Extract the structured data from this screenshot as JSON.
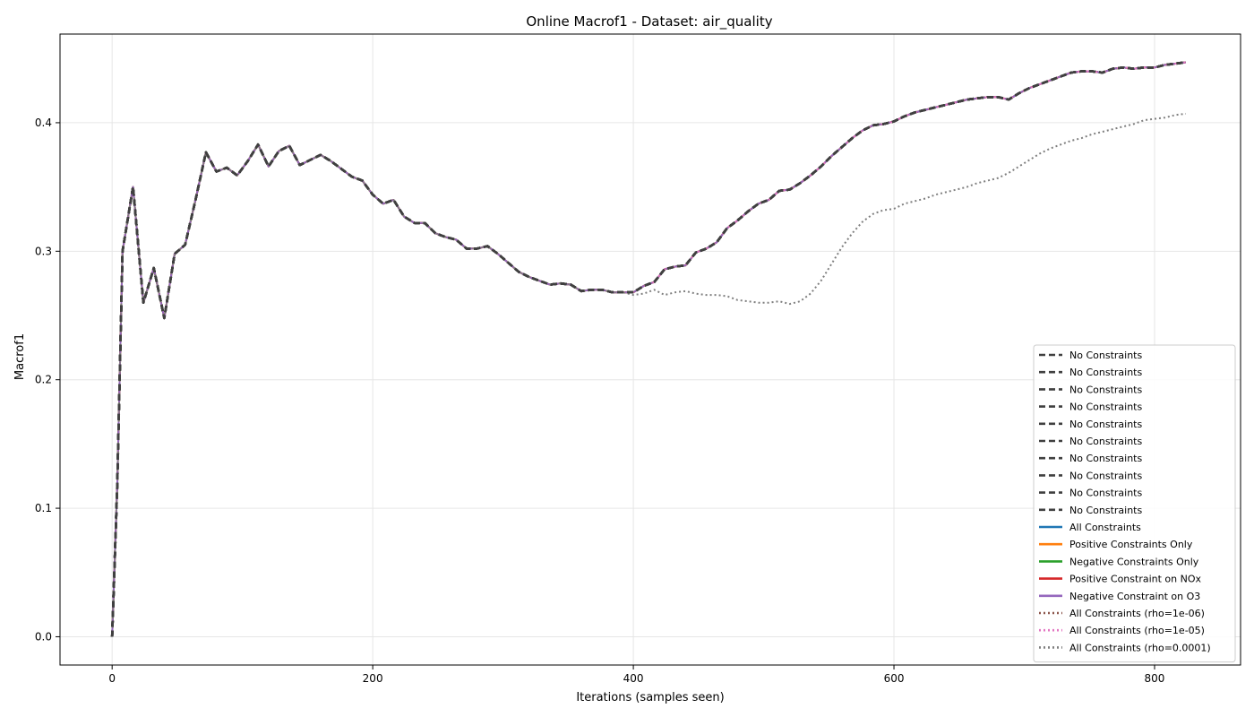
{
  "chart_data": {
    "type": "line",
    "title": "Online Macrof1 - Dataset: air_quality",
    "xlabel": "Iterations (samples seen)",
    "ylabel": "Macrof1",
    "xlim": [
      -40,
      866
    ],
    "ylim": [
      -0.022,
      0.469
    ],
    "xticks": [
      0,
      200,
      400,
      600,
      800
    ],
    "yticks": [
      0.0,
      0.1,
      0.2,
      0.3,
      0.4
    ],
    "grid": true,
    "legend_position": "lower-right",
    "main_curve": [
      [
        0,
        0.0
      ],
      [
        4,
        0.12
      ],
      [
        8,
        0.3
      ],
      [
        16,
        0.35
      ],
      [
        24,
        0.26
      ],
      [
        32,
        0.287
      ],
      [
        40,
        0.248
      ],
      [
        48,
        0.298
      ],
      [
        56,
        0.305
      ],
      [
        64,
        0.34
      ],
      [
        72,
        0.377
      ],
      [
        80,
        0.362
      ],
      [
        88,
        0.365
      ],
      [
        96,
        0.359
      ],
      [
        104,
        0.37
      ],
      [
        112,
        0.383
      ],
      [
        120,
        0.366
      ],
      [
        128,
        0.378
      ],
      [
        136,
        0.382
      ],
      [
        144,
        0.367
      ],
      [
        152,
        0.371
      ],
      [
        160,
        0.375
      ],
      [
        168,
        0.37
      ],
      [
        176,
        0.364
      ],
      [
        184,
        0.358
      ],
      [
        192,
        0.355
      ],
      [
        200,
        0.344
      ],
      [
        208,
        0.337
      ],
      [
        216,
        0.34
      ],
      [
        224,
        0.327
      ],
      [
        232,
        0.322
      ],
      [
        240,
        0.322
      ],
      [
        248,
        0.314
      ],
      [
        256,
        0.311
      ],
      [
        264,
        0.309
      ],
      [
        272,
        0.302
      ],
      [
        280,
        0.302
      ],
      [
        288,
        0.304
      ],
      [
        296,
        0.298
      ],
      [
        304,
        0.291
      ],
      [
        312,
        0.284
      ],
      [
        320,
        0.28
      ],
      [
        328,
        0.277
      ],
      [
        336,
        0.274
      ],
      [
        344,
        0.275
      ],
      [
        352,
        0.274
      ],
      [
        360,
        0.269
      ],
      [
        368,
        0.27
      ],
      [
        376,
        0.27
      ],
      [
        384,
        0.268
      ],
      [
        392,
        0.268
      ],
      [
        400,
        0.268
      ],
      [
        408,
        0.273
      ],
      [
        416,
        0.276
      ],
      [
        424,
        0.286
      ],
      [
        432,
        0.288
      ],
      [
        440,
        0.289
      ],
      [
        448,
        0.299
      ],
      [
        456,
        0.302
      ],
      [
        464,
        0.307
      ],
      [
        472,
        0.318
      ],
      [
        480,
        0.324
      ],
      [
        488,
        0.331
      ],
      [
        496,
        0.337
      ],
      [
        504,
        0.34
      ],
      [
        512,
        0.347
      ],
      [
        520,
        0.348
      ],
      [
        528,
        0.353
      ],
      [
        536,
        0.359
      ],
      [
        544,
        0.366
      ],
      [
        552,
        0.374
      ],
      [
        560,
        0.381
      ],
      [
        568,
        0.388
      ],
      [
        576,
        0.394
      ],
      [
        584,
        0.398
      ],
      [
        592,
        0.399
      ],
      [
        600,
        0.401
      ],
      [
        608,
        0.405
      ],
      [
        616,
        0.408
      ],
      [
        624,
        0.41
      ],
      [
        632,
        0.412
      ],
      [
        640,
        0.414
      ],
      [
        648,
        0.416
      ],
      [
        656,
        0.418
      ],
      [
        664,
        0.419
      ],
      [
        672,
        0.42
      ],
      [
        680,
        0.42
      ],
      [
        688,
        0.418
      ],
      [
        696,
        0.423
      ],
      [
        704,
        0.427
      ],
      [
        712,
        0.43
      ],
      [
        720,
        0.433
      ],
      [
        728,
        0.436
      ],
      [
        736,
        0.439
      ],
      [
        744,
        0.44
      ],
      [
        752,
        0.44
      ],
      [
        760,
        0.439
      ],
      [
        768,
        0.442
      ],
      [
        776,
        0.443
      ],
      [
        784,
        0.442
      ],
      [
        792,
        0.443
      ],
      [
        800,
        0.443
      ],
      [
        808,
        0.445
      ],
      [
        816,
        0.446
      ],
      [
        824,
        0.447
      ]
    ],
    "rho_1e_4_tail": [
      [
        400,
        0.266
      ],
      [
        408,
        0.267
      ],
      [
        416,
        0.27
      ],
      [
        424,
        0.266
      ],
      [
        432,
        0.268
      ],
      [
        440,
        0.269
      ],
      [
        448,
        0.267
      ],
      [
        456,
        0.266
      ],
      [
        464,
        0.266
      ],
      [
        472,
        0.265
      ],
      [
        480,
        0.262
      ],
      [
        488,
        0.261
      ],
      [
        496,
        0.26
      ],
      [
        504,
        0.26
      ],
      [
        512,
        0.261
      ],
      [
        520,
        0.259
      ],
      [
        528,
        0.261
      ],
      [
        536,
        0.267
      ],
      [
        544,
        0.277
      ],
      [
        552,
        0.29
      ],
      [
        560,
        0.303
      ],
      [
        568,
        0.314
      ],
      [
        576,
        0.323
      ],
      [
        584,
        0.329
      ],
      [
        592,
        0.332
      ],
      [
        600,
        0.333
      ],
      [
        608,
        0.337
      ],
      [
        616,
        0.339
      ],
      [
        624,
        0.341
      ],
      [
        632,
        0.344
      ],
      [
        640,
        0.346
      ],
      [
        648,
        0.348
      ],
      [
        656,
        0.35
      ],
      [
        664,
        0.353
      ],
      [
        672,
        0.355
      ],
      [
        680,
        0.357
      ],
      [
        688,
        0.361
      ],
      [
        696,
        0.366
      ],
      [
        704,
        0.371
      ],
      [
        712,
        0.376
      ],
      [
        720,
        0.38
      ],
      [
        728,
        0.383
      ],
      [
        736,
        0.386
      ],
      [
        744,
        0.388
      ],
      [
        752,
        0.391
      ],
      [
        760,
        0.393
      ],
      [
        768,
        0.395
      ],
      [
        776,
        0.397
      ],
      [
        784,
        0.399
      ],
      [
        792,
        0.402
      ],
      [
        800,
        0.403
      ],
      [
        808,
        0.404
      ],
      [
        816,
        0.406
      ],
      [
        824,
        0.407
      ]
    ],
    "series": [
      {
        "name": "No Constraints",
        "color": "#404040",
        "dash": "dashed",
        "data": "main"
      },
      {
        "name": "No Constraints",
        "color": "#404040",
        "dash": "dashed",
        "data": "main"
      },
      {
        "name": "No Constraints",
        "color": "#404040",
        "dash": "dashed",
        "data": "main"
      },
      {
        "name": "No Constraints",
        "color": "#404040",
        "dash": "dashed",
        "data": "main"
      },
      {
        "name": "No Constraints",
        "color": "#404040",
        "dash": "dashed",
        "data": "main"
      },
      {
        "name": "No Constraints",
        "color": "#404040",
        "dash": "dashed",
        "data": "main"
      },
      {
        "name": "No Constraints",
        "color": "#404040",
        "dash": "dashed",
        "data": "main"
      },
      {
        "name": "No Constraints",
        "color": "#404040",
        "dash": "dashed",
        "data": "main"
      },
      {
        "name": "No Constraints",
        "color": "#404040",
        "dash": "dashed",
        "data": "main"
      },
      {
        "name": "No Constraints",
        "color": "#404040",
        "dash": "dashed",
        "data": "main"
      },
      {
        "name": "All Constraints",
        "color": "#1f77b4",
        "dash": "solid",
        "data": "main"
      },
      {
        "name": "Positive Constraints Only",
        "color": "#ff7f0e",
        "dash": "solid",
        "data": "main"
      },
      {
        "name": "Negative Constraints Only",
        "color": "#2ca02c",
        "dash": "solid",
        "data": "main"
      },
      {
        "name": "Positive Constraint on NOx",
        "color": "#d62728",
        "dash": "solid",
        "data": "main"
      },
      {
        "name": "Negative Constraint on O3",
        "color": "#9467bd",
        "dash": "solid",
        "data": "main"
      },
      {
        "name": "All Constraints (rho=1e-06)",
        "color": "#8c564b",
        "dash": "dotted",
        "data": "main"
      },
      {
        "name": "All Constraints (rho=1e-05)",
        "color": "#e377c2",
        "dash": "dotted",
        "data": "main"
      },
      {
        "name": "All Constraints (rho=0.0001)",
        "color": "#7f7f7f",
        "dash": "dotted",
        "data": "rho"
      }
    ]
  }
}
